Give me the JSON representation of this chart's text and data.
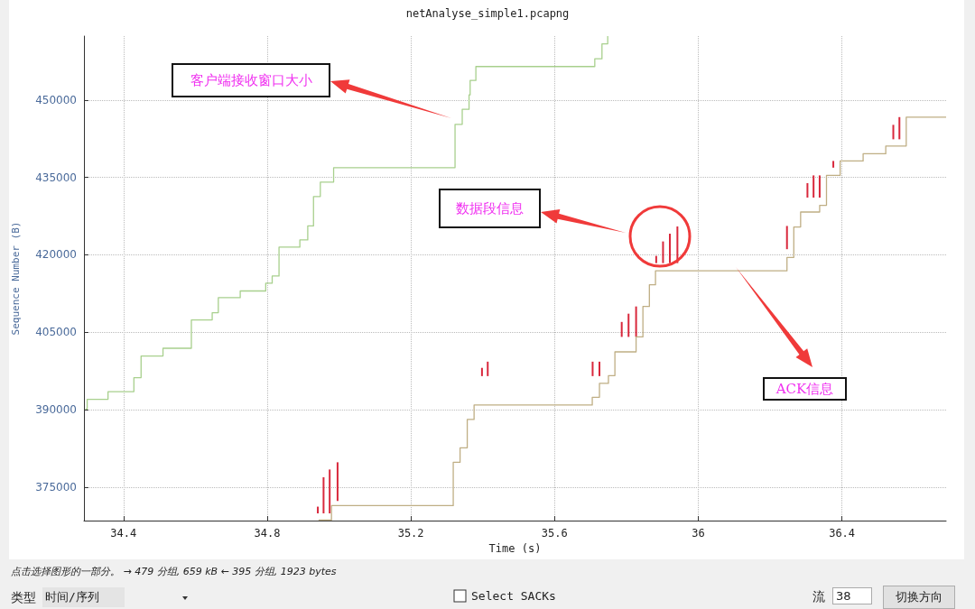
{
  "chart_data": {
    "type": "step",
    "title": "netAnalyse_simple1.pcapng",
    "xlabel": "Time (s)",
    "ylabel": "Sequence Number (B)",
    "xlim": [
      34.29,
      36.69
    ],
    "xticks": [
      34.4,
      34.8,
      35.2,
      35.6,
      36,
      36.4
    ],
    "ylim": [
      368500,
      462400
    ],
    "yticks": [
      375000,
      390000,
      405000,
      420000,
      435000,
      450000
    ],
    "grid": true,
    "series": [
      {
        "color": "#a8d08d",
        "x": [
          34.294,
          34.299,
          34.357,
          34.429,
          34.449,
          34.51,
          34.589,
          34.647,
          34.664,
          34.725,
          34.796,
          34.814,
          34.833,
          34.891,
          34.913,
          34.929,
          34.948,
          34.985,
          35.323,
          35.343,
          35.362,
          35.365,
          35.381,
          35.712,
          35.732,
          35.748
        ],
        "values": [
          390100,
          392000,
          393500,
          396200,
          400400,
          401900,
          407400,
          408800,
          411700,
          413000,
          414500,
          415900,
          421500,
          422900,
          425600,
          431300,
          434100,
          436900,
          445300,
          448200,
          451000,
          453800,
          456500,
          458000,
          460900,
          462400
        ]
      },
      {
        "color": "#bfae84",
        "x": [
          34.943,
          34.979,
          35.318,
          35.337,
          35.357,
          35.376,
          35.705,
          35.725,
          35.75,
          35.768,
          35.827,
          35.846,
          35.864,
          35.881,
          36.247,
          36.266,
          36.285,
          36.338,
          36.357,
          36.395,
          36.459,
          36.522,
          36.579,
          36.69
        ],
        "values": [
          368600,
          371400,
          379800,
          382600,
          388100,
          390900,
          392400,
          395100,
          396600,
          401200,
          404100,
          410000,
          414200,
          416900,
          419500,
          425400,
          428300,
          429600,
          435400,
          438200,
          439600,
          441100,
          446700,
          446700
        ]
      },
      {
        "type": "bar",
        "color": "#d9283c",
        "x": [
          34.941,
          34.957,
          34.974,
          34.996,
          35.398,
          35.414,
          35.706,
          35.725,
          35.787,
          35.806,
          35.827,
          35.883,
          35.902,
          35.921,
          35.942,
          36.247,
          36.304,
          36.321,
          36.338,
          36.376,
          36.543,
          36.56
        ],
        "base": [
          369900,
          369900,
          369900,
          372300,
          396500,
          396500,
          396500,
          396500,
          404100,
          404100,
          404100,
          418400,
          418400,
          418400,
          418400,
          421100,
          431100,
          431100,
          431100,
          436900,
          442400,
          442400
        ],
        "values": [
          1300,
          7000,
          8500,
          7500,
          1600,
          2800,
          2800,
          2800,
          2900,
          4500,
          5900,
          1400,
          4200,
          5700,
          7100,
          4500,
          2800,
          4300,
          4300,
          1300,
          2800,
          4300
        ]
      }
    ],
    "annotations": [
      "客户端接收窗口大小",
      "数据段信息",
      "ACK信息",
      "点击选择图形的一部分。 → 479 分组, 659 kB ← 395 分组, 1923 bytes",
      "类型",
      "时间/序列",
      "Select SACKs",
      "流",
      "38",
      "切换方向"
    ]
  }
}
